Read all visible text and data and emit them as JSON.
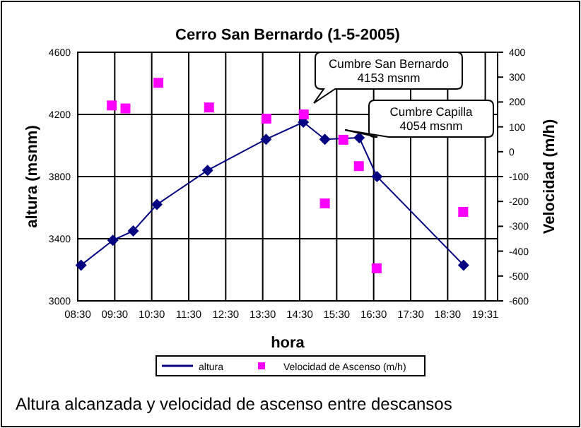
{
  "chart_data": {
    "type": "line",
    "title": "Cerro San Bernardo (1-5-2005)",
    "xlabel": "hora",
    "ylabel": "altura (msnm)",
    "y2label": "Velocidad (m/h)",
    "xlim": [
      8.5,
      19.85
    ],
    "xticks": [
      {
        "value": 8.5,
        "label": "08:30"
      },
      {
        "value": 9.5,
        "label": "09:30"
      },
      {
        "value": 10.5,
        "label": "10:30"
      },
      {
        "value": 11.5,
        "label": "11:30"
      },
      {
        "value": 12.5,
        "label": "12:30"
      },
      {
        "value": 13.5,
        "label": "13:30"
      },
      {
        "value": 14.5,
        "label": "14:30"
      },
      {
        "value": 15.5,
        "label": "15:30"
      },
      {
        "value": 16.5,
        "label": "16:30"
      },
      {
        "value": 17.5,
        "label": "17:30"
      },
      {
        "value": 18.5,
        "label": "18:30"
      },
      {
        "value": 19.517,
        "label": "19:31"
      }
    ],
    "ylim": [
      3000,
      4600
    ],
    "yticks": [
      3000,
      3400,
      3800,
      4200,
      4600
    ],
    "y2lim": [
      -600,
      400
    ],
    "y2ticks": [
      -600,
      -500,
      -400,
      -300,
      -200,
      -100,
      0,
      100,
      200,
      300,
      400
    ],
    "grid": true,
    "legend": "bottom",
    "series": [
      {
        "name": "altura",
        "color": "#000080",
        "marker": "diamond",
        "x": [
          8.59,
          9.45,
          10.0,
          10.64,
          12.01,
          13.59,
          14.6,
          15.18,
          16.11,
          16.59,
          18.93
        ],
        "values": [
          3230,
          3390,
          3450,
          3620,
          3840,
          4040,
          4150,
          4040,
          4050,
          3800,
          3230
        ]
      },
      {
        "name": "Velocidad de Ascenso (m/h)",
        "type": "scatter",
        "axis": "y2",
        "color": "#ff00ff",
        "marker": "square",
        "x": [
          9.42,
          9.79,
          10.68,
          12.05,
          13.6,
          14.61,
          15.18,
          15.68,
          16.1,
          16.58,
          18.92
        ],
        "values": [
          186,
          174,
          277,
          178,
          133,
          150,
          -208,
          48,
          -58,
          -469,
          -242
        ]
      }
    ],
    "annotations": [
      "Cumbre San Bernardo\n4153 msnm",
      "Cumbre Capilla\n4054 msnm",
      "Altura alcanzada y velocidad de ascenso entre descansos"
    ]
  }
}
